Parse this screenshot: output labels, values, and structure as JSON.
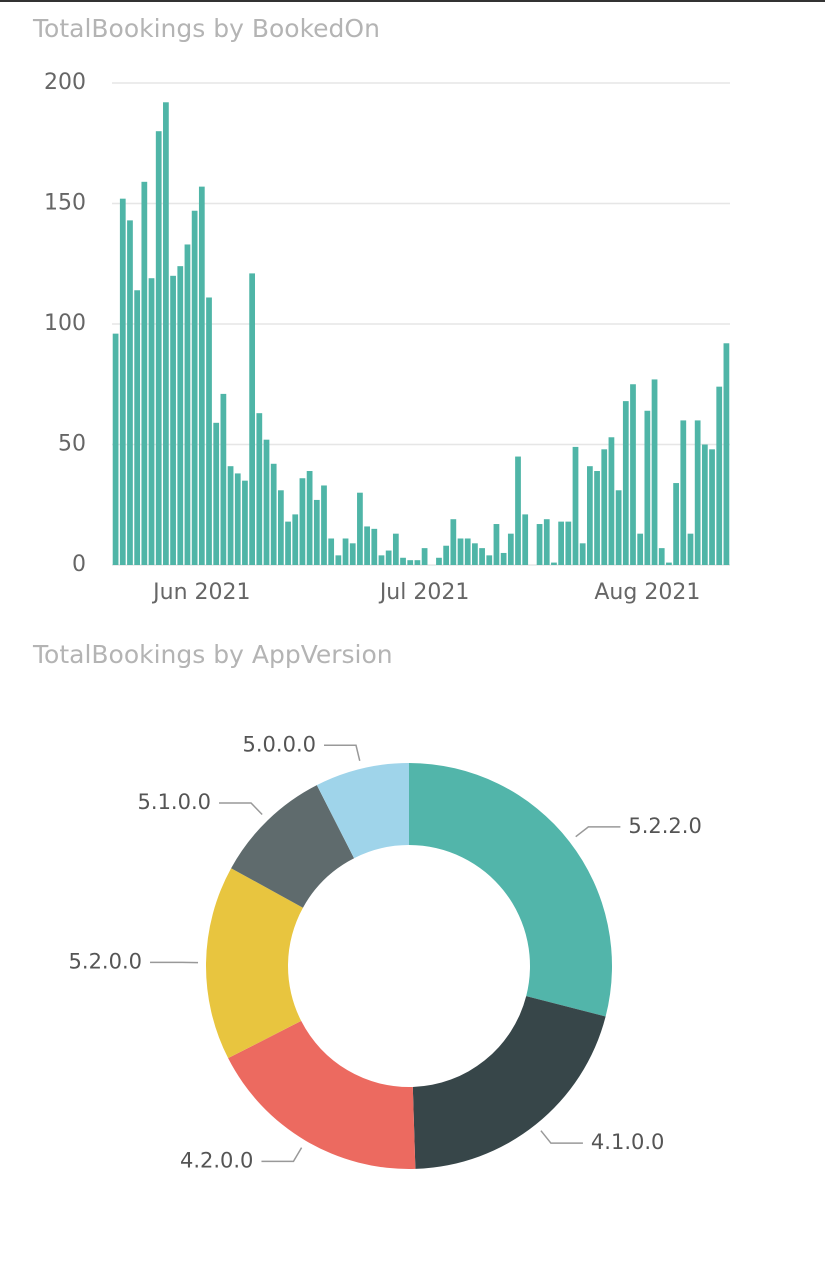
{
  "chart_data": [
    {
      "type": "bar",
      "title": "TotalBookings by BookedOn",
      "color": "#4fb5a7",
      "grid": true,
      "categories": [
        null,
        null,
        null,
        null,
        null,
        null,
        null,
        null,
        null,
        null,
        null,
        null,
        "Jun 2021",
        null,
        null,
        null,
        null,
        null,
        null,
        null,
        null,
        null,
        null,
        null,
        null,
        null,
        null,
        null,
        null,
        null,
        null,
        null,
        null,
        null,
        null,
        null,
        null,
        null,
        null,
        null,
        null,
        null,
        null,
        "Jul 2021",
        null,
        null,
        null,
        null,
        null,
        null,
        null,
        null,
        null,
        null,
        null,
        null,
        null,
        null,
        null,
        null,
        null,
        null,
        null,
        null,
        null,
        null,
        null,
        null,
        null,
        null,
        null,
        null,
        null,
        null,
        "Aug 2021",
        null,
        null,
        null,
        null,
        null,
        null,
        null,
        null,
        null,
        null,
        null
      ],
      "values": [
        96,
        152,
        143,
        114,
        159,
        119,
        180,
        192,
        120,
        124,
        133,
        147,
        157,
        111,
        59,
        71,
        41,
        38,
        35,
        121,
        63,
        52,
        42,
        31,
        18,
        21,
        36,
        39,
        27,
        33,
        11,
        4,
        11,
        9,
        30,
        16,
        15,
        4,
        6,
        13,
        3,
        2,
        2,
        7,
        0,
        3,
        8,
        19,
        11,
        11,
        9,
        7,
        4,
        17,
        5,
        13,
        45,
        21,
        0,
        17,
        19,
        1,
        18,
        18,
        49,
        9,
        41,
        39,
        48,
        53,
        31,
        68,
        75,
        13,
        64,
        77,
        7,
        1,
        34,
        60,
        13,
        60,
        50,
        48,
        74,
        92
      ],
      "ylim": [
        0,
        200
      ],
      "yticks": [
        0,
        50,
        100,
        150,
        200
      ]
    },
    {
      "type": "donut",
      "title": "TotalBookings by AppVersion",
      "categories": [
        "5.2.2.0",
        "4.1.0.0",
        "4.2.0.0",
        "5.2.0.0",
        "5.1.0.0",
        "5.0.0.0"
      ],
      "values": [
        29,
        20.5,
        18,
        15.5,
        9.5,
        7.5
      ],
      "colors": [
        "#52b5aa",
        "#374649",
        "#ec6a60",
        "#e8c53f",
        "#5f6b6d",
        "#9fd4ea"
      ]
    }
  ]
}
